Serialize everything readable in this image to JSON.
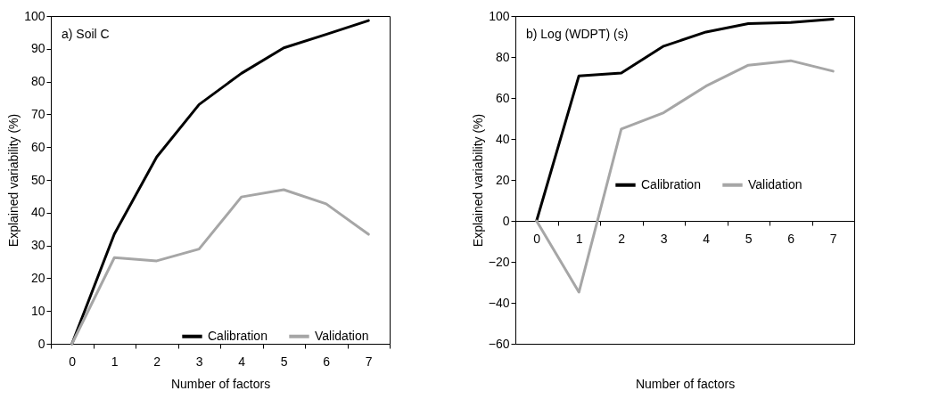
{
  "chart_data": [
    {
      "type": "line",
      "title": "a) Soil C",
      "xlabel": "Number of factors",
      "ylabel": "Explained variability (%)",
      "categories": [
        "0",
        "1",
        "2",
        "3",
        "4",
        "5",
        "6",
        "7"
      ],
      "series": [
        {
          "name": "Calibration",
          "color": "#000000",
          "values": [
            0,
            33.5,
            57,
            73,
            82.5,
            90.3,
            94.4,
            98.6
          ]
        },
        {
          "name": "Validation",
          "color": "#a6a6a6",
          "values": [
            0,
            26.3,
            25.3,
            28.9,
            44.8,
            47,
            42.7,
            33.4
          ]
        }
      ],
      "ylim": [
        0,
        100
      ],
      "yticks": [
        0,
        10,
        20,
        30,
        40,
        50,
        60,
        70,
        80,
        90,
        100
      ],
      "legend": "bottom right"
    },
    {
      "type": "line",
      "title": "b) Log (WDPT) (s)",
      "xlabel": "Number of factors",
      "ylabel": "Explained variability (%)",
      "categories": [
        "0",
        "1",
        "2",
        "3",
        "4",
        "5",
        "6",
        "7"
      ],
      "series": [
        {
          "name": "Calibration",
          "color": "#000000",
          "values": [
            0,
            70.8,
            72.2,
            85.3,
            92.2,
            96.3,
            96.8,
            98.5
          ]
        },
        {
          "name": "Validation",
          "color": "#a6a6a6",
          "values": [
            0,
            -34.8,
            44.8,
            52.8,
            65.8,
            76,
            78.2,
            73.1
          ]
        }
      ],
      "ylim": [
        -60,
        100
      ],
      "yticks": [
        -60,
        -40,
        -20,
        0,
        20,
        40,
        60,
        80,
        100
      ],
      "legend": "right"
    }
  ]
}
